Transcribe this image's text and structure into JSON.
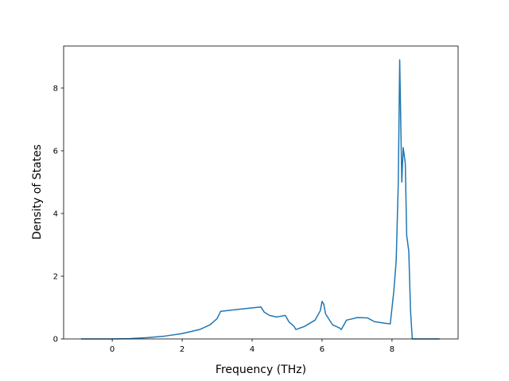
{
  "chart_data": {
    "type": "line",
    "xlabel": "Frequency (THz)",
    "ylabel": "Density of States",
    "x": [
      -0.89,
      0,
      0.5,
      1,
      1.5,
      2,
      2.5,
      2.8,
      3.0,
      3.1,
      3.5,
      4.0,
      4.25,
      4.35,
      4.5,
      4.7,
      4.8,
      4.95,
      5.05,
      5.2,
      5.25,
      5.5,
      5.8,
      5.95,
      6.0,
      6.05,
      6.1,
      6.3,
      6.5,
      6.55,
      6.7,
      6.9,
      7.0,
      7.3,
      7.5,
      7.8,
      7.95,
      8.05,
      8.12,
      8.18,
      8.22,
      8.28,
      8.32,
      8.38,
      8.42,
      8.48,
      8.53,
      8.58,
      9.0,
      9.36
    ],
    "series": [
      {
        "color": "#1f77b4",
        "values": [
          0,
          0,
          0.01,
          0.04,
          0.09,
          0.17,
          0.3,
          0.45,
          0.65,
          0.88,
          0.93,
          0.99,
          1.02,
          0.85,
          0.75,
          0.7,
          0.72,
          0.75,
          0.55,
          0.4,
          0.3,
          0.4,
          0.6,
          0.9,
          1.2,
          1.1,
          0.8,
          0.45,
          0.35,
          0.3,
          0.6,
          0.65,
          0.68,
          0.67,
          0.55,
          0.5,
          0.48,
          1.5,
          2.5,
          5.0,
          8.9,
          5.0,
          6.1,
          5.6,
          3.3,
          2.8,
          0.9,
          0,
          0,
          0
        ]
      }
    ],
    "xlim": [
      -1.39,
      9.89
    ],
    "ylim": [
      0,
      9.34
    ],
    "xticks": [
      0,
      2,
      4,
      6,
      8
    ],
    "yticks": [
      0,
      2,
      4,
      6,
      8
    ]
  }
}
